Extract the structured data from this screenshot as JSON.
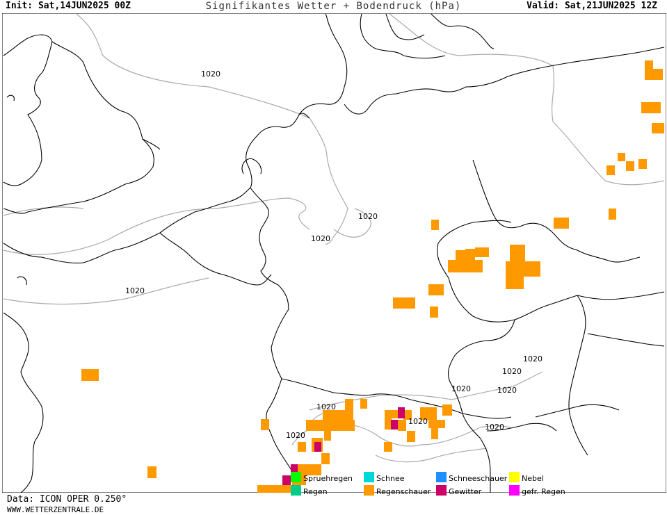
{
  "header": {
    "init": "Init: Sat,14JUN2025 00Z",
    "title": "Signifikantes Wetter + Bodendruck (hPa)",
    "valid": "Valid: Sat,21JUN2025 12Z"
  },
  "footer": {
    "data_source": "Data: ICON OPER 0.250°",
    "website": "WWW.WETTERZENTRALE.DE"
  },
  "isobar_labels": [
    "1020",
    "1020",
    "1020",
    "1020",
    "1020",
    "1020",
    "1020",
    "1020",
    "1020",
    "1020",
    "1020",
    "1020"
  ],
  "legend": [
    {
      "label": "Spruehregen",
      "color": "#00ff00"
    },
    {
      "label": "Schnee",
      "color": "#00d8d8"
    },
    {
      "label": "Schneeschauer",
      "color": "#1e90ff"
    },
    {
      "label": "Nebel",
      "color": "#ffff00"
    },
    {
      "label": "Regen",
      "color": "#00cc88"
    },
    {
      "label": "Regenschauer",
      "color": "#ff9900"
    },
    {
      "label": "Gewitter",
      "color": "#cc0066"
    },
    {
      "label": "gefr. Regen",
      "color": "#ff00ff"
    }
  ],
  "colors": {
    "coastline": "#000000",
    "isobar": "#aaaaaa",
    "showers": "#ff9900",
    "thunderstorm": "#cc0066"
  }
}
